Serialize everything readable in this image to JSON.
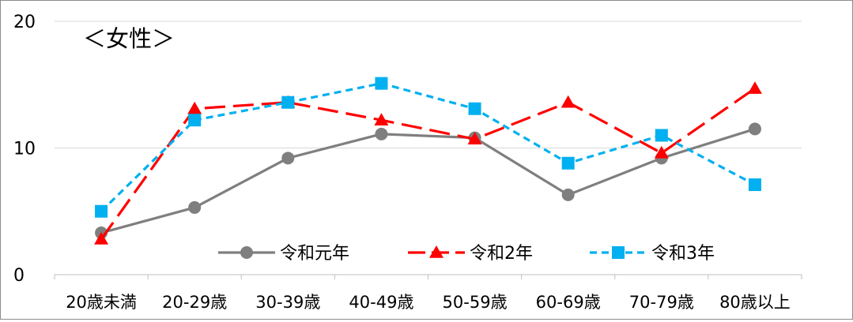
{
  "chart_data": {
    "type": "line",
    "title": "＜女性＞",
    "categories": [
      "20歳未満",
      "20-29歳",
      "30-39歳",
      "40-49歳",
      "50-59歳",
      "60-69歳",
      "70-79歳",
      "80歳以上"
    ],
    "ylim": [
      0,
      20
    ],
    "yticks": [
      "0",
      "10",
      "20"
    ],
    "grid": true,
    "legend_position": "bottom-center",
    "series": [
      {
        "name": "令和元年",
        "values": [
          3.3,
          5.3,
          9.2,
          11.1,
          10.8,
          6.3,
          9.2,
          11.5
        ],
        "color": "#7f7f7f",
        "marker": "circle",
        "dash": "solid"
      },
      {
        "name": "令和2年",
        "values": [
          2.8,
          13.1,
          13.6,
          12.2,
          10.7,
          13.6,
          9.6,
          14.7
        ],
        "color": "#ff0000",
        "marker": "triangle",
        "dash": "long-dash"
      },
      {
        "name": "令和3年",
        "values": [
          5.0,
          12.2,
          13.6,
          15.1,
          13.1,
          8.8,
          11.0,
          7.1
        ],
        "color": "#00b0f0",
        "marker": "square",
        "dash": "short-dash"
      }
    ]
  }
}
